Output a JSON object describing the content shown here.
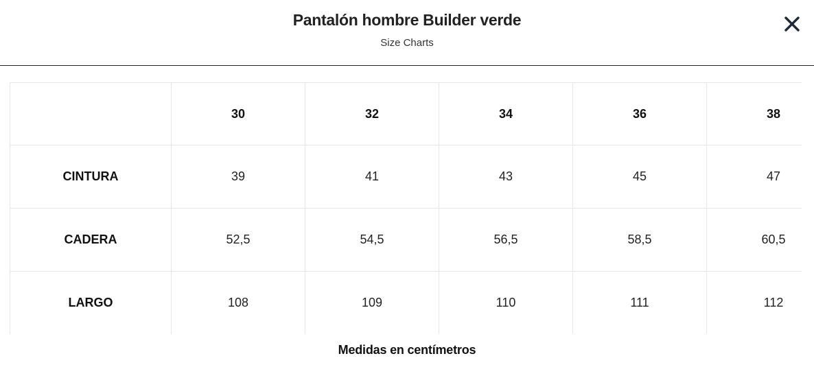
{
  "modal": {
    "title": "Pantalón hombre Builder verde",
    "subtitle": "Size Charts",
    "close_icon": "close-icon"
  },
  "size_table": {
    "corner_label": "",
    "sizes": [
      "30",
      "32",
      "34",
      "36",
      "38"
    ],
    "rows": [
      {
        "label": "CINTURA",
        "values": [
          "39",
          "41",
          "43",
          "45",
          "47"
        ]
      },
      {
        "label": "CADERA",
        "values": [
          "52,5",
          "54,5",
          "56,5",
          "58,5",
          "60,5"
        ]
      },
      {
        "label": "LARGO",
        "values": [
          "108",
          "109",
          "110",
          "111",
          "112"
        ]
      }
    ]
  },
  "footer": {
    "note": "Medidas en centímetros"
  }
}
